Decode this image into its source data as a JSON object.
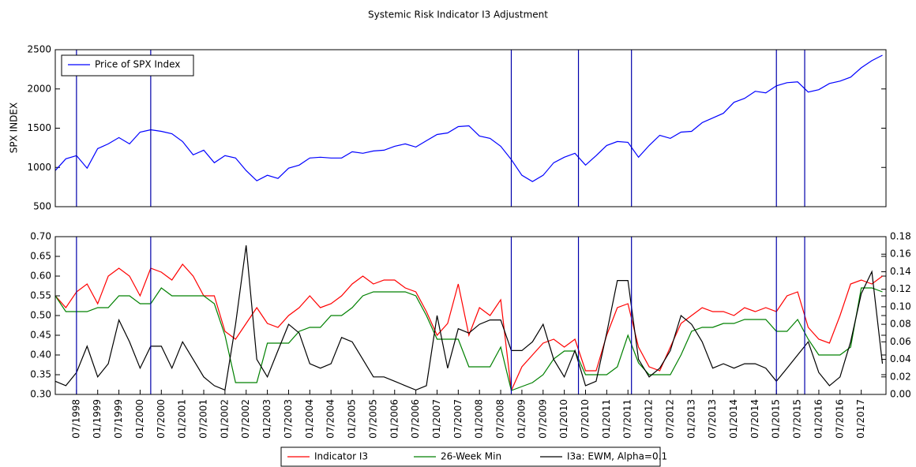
{
  "chart_data": [
    {
      "type": "line",
      "title": "Systemic Risk Indicator I3 Adjustment",
      "ylabel": "SPX INDEX",
      "x": [
        "1998-01",
        "1998-04",
        "1998-07",
        "1998-10",
        "1999-01",
        "1999-04",
        "1999-07",
        "1999-10",
        "2000-01",
        "2000-04",
        "2000-07",
        "2000-10",
        "2001-01",
        "2001-04",
        "2001-07",
        "2001-10",
        "2002-01",
        "2002-04",
        "2002-07",
        "2002-10",
        "2003-01",
        "2003-04",
        "2003-07",
        "2003-10",
        "2004-01",
        "2004-04",
        "2004-07",
        "2004-10",
        "2005-01",
        "2005-04",
        "2005-07",
        "2005-10",
        "2006-01",
        "2006-04",
        "2006-07",
        "2006-10",
        "2007-01",
        "2007-04",
        "2007-07",
        "2007-10",
        "2008-01",
        "2008-04",
        "2008-07",
        "2008-10",
        "2009-01",
        "2009-04",
        "2009-07",
        "2009-10",
        "2010-01",
        "2010-04",
        "2010-07",
        "2010-10",
        "2011-01",
        "2011-04",
        "2011-07",
        "2011-10",
        "2012-01",
        "2012-04",
        "2012-07",
        "2012-10",
        "2013-01",
        "2013-04",
        "2013-07",
        "2013-10",
        "2014-01",
        "2014-04",
        "2014-07",
        "2014-10",
        "2015-01",
        "2015-04",
        "2015-07",
        "2015-10",
        "2016-01",
        "2016-04",
        "2016-07",
        "2016-10",
        "2017-01",
        "2017-04",
        "2017-07"
      ],
      "series": [
        {
          "name": "Price of SPX Index",
          "color": "#0000ff",
          "values": [
            960,
            1110,
            1150,
            990,
            1240,
            1300,
            1380,
            1300,
            1450,
            1480,
            1460,
            1430,
            1330,
            1160,
            1220,
            1060,
            1150,
            1120,
            960,
            830,
            900,
            860,
            990,
            1030,
            1120,
            1130,
            1120,
            1120,
            1200,
            1180,
            1210,
            1220,
            1270,
            1300,
            1260,
            1340,
            1420,
            1440,
            1520,
            1530,
            1400,
            1370,
            1270,
            1100,
            900,
            820,
            900,
            1060,
            1130,
            1180,
            1030,
            1150,
            1280,
            1330,
            1320,
            1130,
            1280,
            1410,
            1370,
            1450,
            1460,
            1570,
            1630,
            1690,
            1830,
            1880,
            1970,
            1950,
            2040,
            2080,
            2090,
            1960,
            1990,
            2070,
            2100,
            2150,
            2270,
            2360,
            2430
          ]
        }
      ],
      "xlim": [
        "1998-01",
        "2017-08"
      ],
      "ylim": [
        500,
        2500
      ],
      "yticks": [
        500,
        1000,
        1500,
        2000,
        2500
      ],
      "event_dates": [
        "1998-07",
        "2000-04",
        "2008-10",
        "2010-05",
        "2011-08",
        "2015-01",
        "2015-09"
      ],
      "event_color": "#0000aa",
      "legend": "upper left"
    },
    {
      "type": "line",
      "x": [
        "1998-01",
        "1998-04",
        "1998-07",
        "1998-10",
        "1999-01",
        "1999-04",
        "1999-07",
        "1999-10",
        "2000-01",
        "2000-04",
        "2000-07",
        "2000-10",
        "2001-01",
        "2001-04",
        "2001-07",
        "2001-10",
        "2002-01",
        "2002-04",
        "2002-07",
        "2002-10",
        "2003-01",
        "2003-04",
        "2003-07",
        "2003-10",
        "2004-01",
        "2004-04",
        "2004-07",
        "2004-10",
        "2005-01",
        "2005-04",
        "2005-07",
        "2005-10",
        "2006-01",
        "2006-04",
        "2006-07",
        "2006-10",
        "2007-01",
        "2007-04",
        "2007-07",
        "2007-10",
        "2008-01",
        "2008-04",
        "2008-07",
        "2008-10",
        "2009-01",
        "2009-04",
        "2009-07",
        "2009-10",
        "2010-01",
        "2010-04",
        "2010-07",
        "2010-10",
        "2011-01",
        "2011-04",
        "2011-07",
        "2011-10",
        "2012-01",
        "2012-04",
        "2012-07",
        "2012-10",
        "2013-01",
        "2013-04",
        "2013-07",
        "2013-10",
        "2014-01",
        "2014-04",
        "2014-07",
        "2014-10",
        "2015-01",
        "2015-04",
        "2015-07",
        "2015-10",
        "2016-01",
        "2016-04",
        "2016-07",
        "2016-10",
        "2017-01",
        "2017-04",
        "2017-07"
      ],
      "series": [
        {
          "name": "Indicator I3",
          "color": "#ff0000",
          "values": [
            0.55,
            0.52,
            0.56,
            0.58,
            0.53,
            0.6,
            0.62,
            0.6,
            0.55,
            0.62,
            0.61,
            0.59,
            0.63,
            0.6,
            0.55,
            0.55,
            0.46,
            0.44,
            0.48,
            0.52,
            0.48,
            0.47,
            0.5,
            0.52,
            0.55,
            0.52,
            0.53,
            0.55,
            0.58,
            0.6,
            0.58,
            0.59,
            0.59,
            0.57,
            0.56,
            0.51,
            0.45,
            0.48,
            0.58,
            0.45,
            0.52,
            0.5,
            0.54,
            0.31,
            0.37,
            0.4,
            0.43,
            0.44,
            0.42,
            0.44,
            0.36,
            0.36,
            0.45,
            0.52,
            0.53,
            0.42,
            0.37,
            0.36,
            0.42,
            0.48,
            0.5,
            0.52,
            0.51,
            0.51,
            0.5,
            0.52,
            0.51,
            0.52,
            0.51,
            0.55,
            0.56,
            0.47,
            0.44,
            0.43,
            0.5,
            0.58,
            0.59,
            0.58,
            0.6
          ]
        },
        {
          "name": "26-Week Min",
          "color": "#008000",
          "values": [
            0.55,
            0.51,
            0.51,
            0.51,
            0.52,
            0.52,
            0.55,
            0.55,
            0.53,
            0.53,
            0.57,
            0.55,
            0.55,
            0.55,
            0.55,
            0.53,
            0.45,
            0.33,
            0.33,
            0.33,
            0.43,
            0.43,
            0.43,
            0.46,
            0.47,
            0.47,
            0.5,
            0.5,
            0.52,
            0.55,
            0.56,
            0.56,
            0.56,
            0.56,
            0.55,
            0.5,
            0.44,
            0.44,
            0.44,
            0.37,
            0.37,
            0.37,
            0.42,
            0.31,
            0.32,
            0.33,
            0.35,
            0.39,
            0.41,
            0.41,
            0.35,
            0.35,
            0.35,
            0.37,
            0.45,
            0.38,
            0.35,
            0.35,
            0.35,
            0.4,
            0.46,
            0.47,
            0.47,
            0.48,
            0.48,
            0.49,
            0.49,
            0.49,
            0.46,
            0.46,
            0.49,
            0.44,
            0.4,
            0.4,
            0.4,
            0.42,
            0.57,
            0.57,
            0.56
          ]
        },
        {
          "name": "I3a: EWM, Alpha=0.1",
          "color": "#000000",
          "axis": "y2",
          "values": [
            0.015,
            0.01,
            0.025,
            0.055,
            0.02,
            0.035,
            0.085,
            0.06,
            0.03,
            0.055,
            0.055,
            0.03,
            0.06,
            0.04,
            0.02,
            0.01,
            0.005,
            0.08,
            0.17,
            0.04,
            0.02,
            0.05,
            0.08,
            0.07,
            0.035,
            0.03,
            0.035,
            0.065,
            0.06,
            0.04,
            0.02,
            0.02,
            0.015,
            0.01,
            0.005,
            0.01,
            0.09,
            0.03,
            0.075,
            0.07,
            0.08,
            0.085,
            0.085,
            0.05,
            0.05,
            0.06,
            0.08,
            0.04,
            0.02,
            0.05,
            0.01,
            0.015,
            0.07,
            0.13,
            0.13,
            0.04,
            0.02,
            0.03,
            0.05,
            0.09,
            0.08,
            0.06,
            0.03,
            0.035,
            0.03,
            0.035,
            0.035,
            0.03,
            0.015,
            0.03,
            0.045,
            0.06,
            0.025,
            0.01,
            0.02,
            0.06,
            0.115,
            0.14,
            0.035
          ]
        }
      ],
      "xlim": [
        "1998-01",
        "2017-08"
      ],
      "xticks": [
        {
          "value": "1998-07",
          "label": "07/1998"
        },
        {
          "value": "1999-01",
          "label": "01/1999"
        },
        {
          "value": "1999-07",
          "label": "07/1999"
        },
        {
          "value": "2000-01",
          "label": "01/2000"
        },
        {
          "value": "2000-07",
          "label": "07/2000"
        },
        {
          "value": "2001-01",
          "label": "01/2001"
        },
        {
          "value": "2001-07",
          "label": "07/2001"
        },
        {
          "value": "2002-01",
          "label": "01/2002"
        },
        {
          "value": "2002-07",
          "label": "07/2002"
        },
        {
          "value": "2003-01",
          "label": "01/2003"
        },
        {
          "value": "2003-07",
          "label": "07/2003"
        },
        {
          "value": "2004-01",
          "label": "01/2004"
        },
        {
          "value": "2004-07",
          "label": "07/2004"
        },
        {
          "value": "2005-01",
          "label": "01/2005"
        },
        {
          "value": "2005-07",
          "label": "07/2005"
        },
        {
          "value": "2006-01",
          "label": "01/2006"
        },
        {
          "value": "2006-07",
          "label": "07/2006"
        },
        {
          "value": "2007-01",
          "label": "01/2007"
        },
        {
          "value": "2007-07",
          "label": "07/2007"
        },
        {
          "value": "2008-01",
          "label": "01/2008"
        },
        {
          "value": "2008-07",
          "label": "07/2008"
        },
        {
          "value": "2009-01",
          "label": "01/2009"
        },
        {
          "value": "2009-07",
          "label": "07/2009"
        },
        {
          "value": "2010-01",
          "label": "01/2010"
        },
        {
          "value": "2010-07",
          "label": "07/2010"
        },
        {
          "value": "2011-01",
          "label": "01/2011"
        },
        {
          "value": "2011-07",
          "label": "07/2011"
        },
        {
          "value": "2012-01",
          "label": "01/2012"
        },
        {
          "value": "2012-07",
          "label": "07/2012"
        },
        {
          "value": "2013-01",
          "label": "01/2013"
        },
        {
          "value": "2013-07",
          "label": "07/2013"
        },
        {
          "value": "2014-01",
          "label": "01/2014"
        },
        {
          "value": "2014-07",
          "label": "07/2014"
        },
        {
          "value": "2015-01",
          "label": "01/2015"
        },
        {
          "value": "2015-07",
          "label": "07/2015"
        },
        {
          "value": "2016-01",
          "label": "01/2016"
        },
        {
          "value": "2016-07",
          "label": "07/2016"
        },
        {
          "value": "2017-01",
          "label": "01/2017"
        }
      ],
      "ylim": [
        0.3,
        0.7
      ],
      "yticks": [
        {
          "value": 0.3,
          "label": "0.30"
        },
        {
          "value": 0.35,
          "label": "0.35"
        },
        {
          "value": 0.4,
          "label": "0.40"
        },
        {
          "value": 0.45,
          "label": "0.45"
        },
        {
          "value": 0.5,
          "label": "0.50"
        },
        {
          "value": 0.55,
          "label": "0.55"
        },
        {
          "value": 0.6,
          "label": "0.60"
        },
        {
          "value": 0.65,
          "label": "0.65"
        },
        {
          "value": 0.7,
          "label": "0.70"
        }
      ],
      "y2lim": [
        0.0,
        0.18
      ],
      "y2ticks": [
        {
          "value": 0.0,
          "label": "0.00"
        },
        {
          "value": 0.02,
          "label": "0.02"
        },
        {
          "value": 0.04,
          "label": "0.04"
        },
        {
          "value": 0.06,
          "label": "0.06"
        },
        {
          "value": 0.08,
          "label": "0.08"
        },
        {
          "value": 0.1,
          "label": "0.10"
        },
        {
          "value": 0.12,
          "label": "0.12"
        },
        {
          "value": 0.14,
          "label": "0.14"
        },
        {
          "value": 0.16,
          "label": "0.16"
        },
        {
          "value": 0.18,
          "label": "0.18"
        }
      ],
      "event_dates": [
        "1998-07",
        "2000-04",
        "2008-10",
        "2010-05",
        "2011-08",
        "2015-01",
        "2015-09"
      ],
      "event_color": "#0000aa",
      "legend": "lower center"
    }
  ]
}
